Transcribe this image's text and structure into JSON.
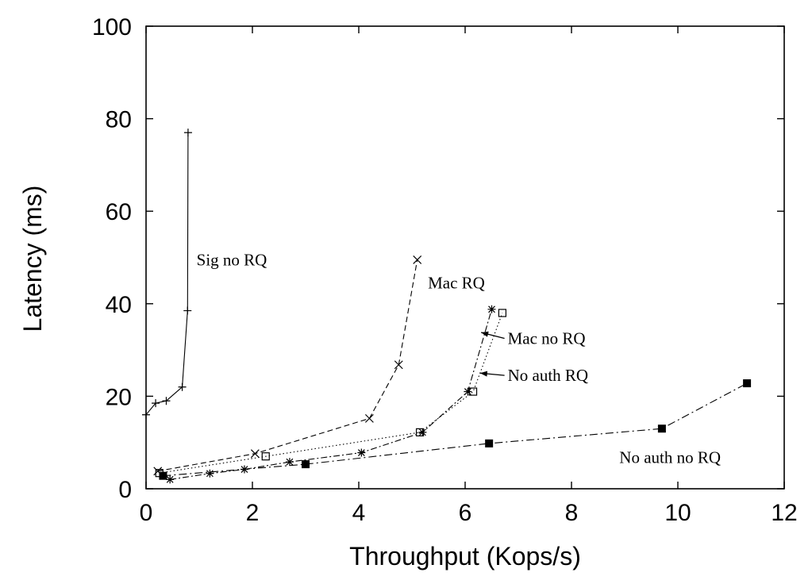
{
  "chart_data": {
    "type": "line",
    "xlabel": "Throughput (Kops/s)",
    "ylabel": "Latency (ms)",
    "xlim": [
      0,
      12
    ],
    "ylim": [
      0,
      100
    ],
    "xticks": [
      0,
      2,
      4,
      6,
      8,
      10,
      12
    ],
    "yticks": [
      0,
      20,
      40,
      60,
      80,
      100
    ],
    "grid": false,
    "legend": "none (series labeled by in-plot annotations)",
    "series": [
      {
        "name": "Sig no RQ",
        "marker": "plus",
        "dash": "solid",
        "x": [
          0.0,
          0.18,
          0.38,
          0.68,
          0.78,
          0.79
        ],
        "y": [
          16,
          18.5,
          19,
          22,
          38.5,
          77
        ]
      },
      {
        "name": "Mac RQ",
        "marker": "cross",
        "dash": "dashed",
        "x": [
          0.22,
          2.05,
          4.2,
          4.75,
          5.1
        ],
        "y": [
          3.8,
          7.6,
          15.2,
          26.8,
          49.5
        ]
      },
      {
        "name": "Mac no RQ",
        "marker": "square",
        "dash": "dotted",
        "x": [
          0.25,
          2.25,
          5.15,
          6.15,
          6.7
        ],
        "y": [
          3.4,
          7.0,
          12.2,
          21.0,
          38.0
        ]
      },
      {
        "name": "No auth RQ",
        "marker": "star",
        "dash": "dashdot",
        "x": [
          0.45,
          1.2,
          1.85,
          2.7,
          4.05,
          5.2,
          6.05,
          6.5
        ],
        "y": [
          2.0,
          3.3,
          4.2,
          5.8,
          7.8,
          12.2,
          21.0,
          38.8
        ]
      },
      {
        "name": "No auth no RQ",
        "marker": "filled-square",
        "dash": "dashdotlong",
        "x": [
          0.32,
          3.0,
          6.45,
          9.7,
          11.3
        ],
        "y": [
          2.8,
          5.3,
          9.8,
          13.0,
          22.8
        ]
      }
    ],
    "annotations": [
      {
        "text": "Sig no RQ",
        "x": 0.95,
        "y": 49.5
      },
      {
        "text": "Mac RQ",
        "x": 5.3,
        "y": 44.5
      },
      {
        "text": "Mac no RQ",
        "x": 6.8,
        "y": 32.5,
        "arrow_to": [
          6.3,
          33.8
        ]
      },
      {
        "text": "No auth RQ",
        "x": 6.8,
        "y": 24.5,
        "arrow_to": [
          6.28,
          25.0
        ]
      },
      {
        "text": "No auth no RQ",
        "x": 8.9,
        "y": 6.8
      }
    ]
  }
}
